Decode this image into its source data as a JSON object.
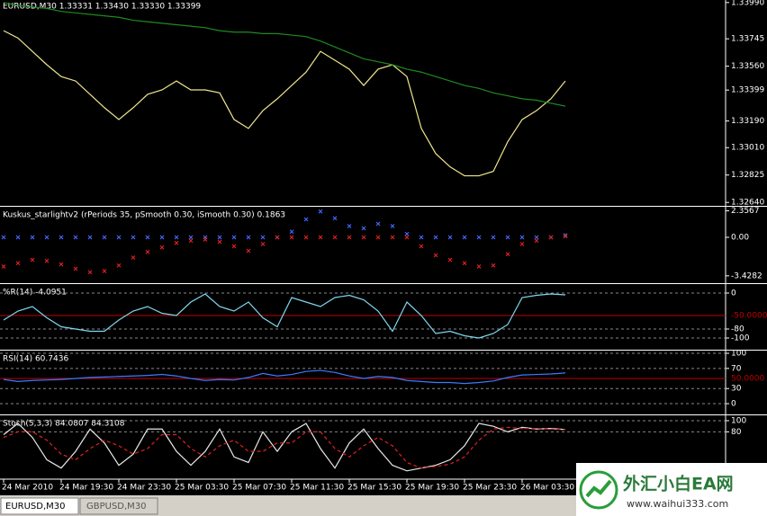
{
  "chart_data": [
    {
      "type": "line",
      "title": "EURUSD,M30  1.33331 1.33430 1.33330 1.33399",
      "categories": [
        "24 Mar 2010",
        null,
        null,
        null,
        "24 Mar 19:30",
        null,
        null,
        null,
        "24 Mar 23:30",
        null,
        null,
        null,
        "25 Mar 03:30",
        null,
        null,
        null,
        "25 Mar 07:30",
        null,
        null,
        null,
        "25 Mar 11:30",
        null,
        null,
        null,
        "25 Mar 15:30",
        null,
        null,
        null,
        "25 Mar 19:30",
        null,
        null,
        null,
        "25 Mar 23:30",
        null,
        null,
        null,
        "26 Mar 03:30",
        null,
        null,
        null
      ],
      "series": [
        {
          "color": "#f0e68c",
          "style": "solid",
          "values": [
            1.338,
            1.3375,
            1.3366,
            1.3357,
            1.3349,
            1.3346,
            1.3337,
            1.3328,
            1.332,
            1.3328,
            1.3337,
            1.334,
            1.3346,
            1.334,
            1.334,
            1.3338,
            1.332,
            1.3314,
            1.3326,
            1.3334,
            1.3343,
            1.3352,
            1.3366,
            1.336,
            1.3354,
            1.3343,
            1.3354,
            1.3357,
            1.3349,
            1.3314,
            1.3297,
            1.3288,
            1.3282,
            1.3282,
            1.3285,
            1.3305,
            1.332,
            1.3326,
            1.3334,
            1.3346
          ]
        },
        {
          "color": "#1f8a1f",
          "style": "solid",
          "values": [
            1.3399,
            1.3397,
            1.3396,
            1.3395,
            1.3393,
            1.3392,
            1.3391,
            1.339,
            1.3389,
            1.3387,
            1.3386,
            1.3385,
            1.3384,
            1.3383,
            1.3382,
            1.338,
            1.3379,
            1.3379,
            1.3378,
            1.3378,
            1.3377,
            1.3376,
            1.3373,
            1.3369,
            1.3365,
            1.3361,
            1.3359,
            1.3357,
            1.3354,
            1.3352,
            1.3349,
            1.3346,
            1.3343,
            1.3341,
            1.3338,
            1.3336,
            1.3334,
            1.3333,
            1.3331,
            1.3329
          ]
        }
      ],
      "ylim": [
        1.32623,
        1.34007
      ],
      "yticks": [
        {
          "value": 1.3399,
          "label": "1.33990"
        },
        {
          "value": 1.33745,
          "label": "1.33745"
        },
        {
          "value": 1.3356,
          "label": "1.33560"
        },
        1.33399,
        {
          "value": 1.3319,
          "label": "1.33190"
        },
        {
          "value": 1.3301,
          "label": "1.33010"
        },
        1.32825,
        {
          "value": 1.3264,
          "label": "1.32640"
        }
      ]
    },
    {
      "type": "cross",
      "title": "Kuskus_starlightv2  (rPeriods 35, pSmooth 0.30, iSmooth 0.30)  0.1863",
      "series": [
        {
          "color": "#4466ff",
          "values": [
            0,
            0,
            0,
            0,
            0,
            0,
            0,
            0,
            0,
            0,
            0,
            0,
            0,
            0,
            0,
            0,
            0,
            0,
            0,
            0,
            0.5,
            1.6,
            2.3,
            1.7,
            1.0,
            0.8,
            1.2,
            1.0,
            0.3,
            0,
            0,
            0,
            0,
            0,
            0,
            0,
            0,
            0,
            0,
            0.19
          ]
        },
        {
          "color": "#e02020",
          "values": [
            -2.6,
            -2.3,
            -2.0,
            -2.1,
            -2.4,
            -2.8,
            -3.1,
            -3.0,
            -2.5,
            -1.8,
            -1.3,
            -0.9,
            -0.5,
            -0.3,
            -0.2,
            -0.4,
            -0.8,
            -1.2,
            -0.6,
            0,
            0,
            0,
            0,
            0,
            0,
            0,
            0,
            0,
            0,
            -0.8,
            -1.6,
            -2.0,
            -2.3,
            -2.6,
            -2.5,
            -1.5,
            -0.6,
            -0.3,
            0,
            0.1
          ]
        }
      ],
      "ylim": [
        -3.92,
        2.64
      ],
      "yticks": [
        2.3567,
        {
          "value": 0,
          "label": "0.00"
        },
        -3.4282
      ]
    },
    {
      "type": "line",
      "title": "%R(14) -4.0951",
      "series": [
        {
          "color": "#7fd8f0",
          "style": "solid",
          "values": [
            -60,
            -40,
            -30,
            -55,
            -75,
            -80,
            -85,
            -85,
            -60,
            -40,
            -30,
            -45,
            -50,
            -20,
            -2,
            -30,
            -40,
            -20,
            -55,
            -75,
            -10,
            -20,
            -30,
            -10,
            -5,
            -15,
            -40,
            -85,
            -20,
            -50,
            -90,
            -85,
            -95,
            -100,
            -90,
            -70,
            -10,
            -5,
            -2,
            -4
          ]
        }
      ],
      "ylim": [
        -126,
        18
      ],
      "yticks": [
        0,
        -80,
        -100
      ],
      "hline": {
        "value": -50,
        "label": "-50.0000",
        "color": "#c00000"
      }
    },
    {
      "type": "line",
      "title": "RSI(14) 60.7436",
      "series": [
        {
          "color": "#3a7bff",
          "style": "solid",
          "values": [
            48,
            44,
            46,
            47,
            48,
            50,
            52,
            53,
            54,
            55,
            56,
            58,
            55,
            50,
            46,
            48,
            47,
            52,
            60,
            55,
            58,
            64,
            66,
            62,
            55,
            50,
            54,
            52,
            46,
            44,
            42,
            42,
            40,
            42,
            45,
            52,
            57,
            58,
            59,
            61
          ]
        }
      ],
      "ylim": [
        -19.6,
        103.6
      ],
      "yticks": [
        100,
        70,
        30,
        0
      ],
      "hline": {
        "value": 50,
        "label": "50.0000",
        "color": "#c00000"
      }
    },
    {
      "type": "line",
      "title": "Stoch(5,3,3) 84.0807 84.3108",
      "series": [
        {
          "color": "#e8e8e8",
          "style": "solid",
          "values": [
            75,
            95,
            70,
            30,
            15,
            45,
            85,
            60,
            20,
            40,
            85,
            85,
            45,
            20,
            45,
            85,
            35,
            25,
            80,
            45,
            80,
            95,
            50,
            15,
            60,
            85,
            50,
            20,
            10,
            15,
            20,
            30,
            55,
            95,
            90,
            80,
            88,
            85,
            86,
            84
          ]
        },
        {
          "color": "#e02020",
          "style": "dashed",
          "values": [
            70,
            80,
            80,
            65,
            40,
            30,
            50,
            65,
            55,
            40,
            50,
            75,
            75,
            50,
            35,
            55,
            65,
            45,
            45,
            60,
            60,
            80,
            80,
            50,
            35,
            55,
            70,
            55,
            25,
            15,
            18,
            22,
            35,
            65,
            85,
            88,
            86,
            86,
            85,
            84
          ]
        }
      ],
      "ylim": [
        -1.6,
        108
      ],
      "yticks": [
        100,
        80
      ]
    }
  ],
  "tabs": [
    "EURUSD,M30",
    "GBPUSD,M30"
  ],
  "watermark": {
    "title": "外汇小白EA网",
    "url": "www.waihui333.com"
  }
}
